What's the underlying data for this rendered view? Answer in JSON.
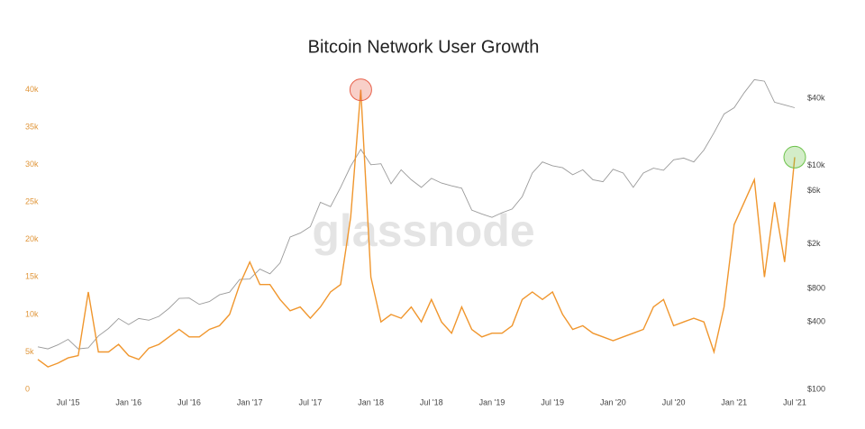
{
  "chart_data": {
    "type": "line",
    "title": "Bitcoin Network User Growth",
    "watermark": "glassnode",
    "x": [
      "2015-04",
      "2015-05",
      "2015-06",
      "2015-07",
      "2015-08",
      "2015-09",
      "2015-10",
      "2015-11",
      "2015-12",
      "2016-01",
      "2016-02",
      "2016-03",
      "2016-04",
      "2016-05",
      "2016-06",
      "2016-07",
      "2016-08",
      "2016-09",
      "2016-10",
      "2016-11",
      "2016-12",
      "2017-01",
      "2017-02",
      "2017-03",
      "2017-04",
      "2017-05",
      "2017-06",
      "2017-07",
      "2017-08",
      "2017-09",
      "2017-10",
      "2017-11",
      "2017-12",
      "2018-01",
      "2018-02",
      "2018-03",
      "2018-04",
      "2018-05",
      "2018-06",
      "2018-07",
      "2018-08",
      "2018-09",
      "2018-10",
      "2018-11",
      "2018-12",
      "2019-01",
      "2019-02",
      "2019-03",
      "2019-04",
      "2019-05",
      "2019-06",
      "2019-07",
      "2019-08",
      "2019-09",
      "2019-10",
      "2019-11",
      "2019-12",
      "2020-01",
      "2020-02",
      "2020-03",
      "2020-04",
      "2020-05",
      "2020-06",
      "2020-07",
      "2020-08",
      "2020-09",
      "2020-10",
      "2020-11",
      "2020-12",
      "2021-01",
      "2021-02",
      "2021-03",
      "2021-04",
      "2021-05",
      "2021-06",
      "2021-07"
    ],
    "series": [
      {
        "color": "#9a9a9a",
        "axis": "y2",
        "values": [
          240,
          230,
          250,
          280,
          230,
          235,
          300,
          350,
          430,
          380,
          430,
          415,
          450,
          530,
          650,
          655,
          575,
          610,
          700,
          740,
          960,
          970,
          1190,
          1080,
          1350,
          2300,
          2500,
          2850,
          4700,
          4300,
          6400,
          9900,
          14000,
          10200,
          10400,
          6900,
          9200,
          7500,
          6400,
          7700,
          7000,
          6600,
          6300,
          4000,
          3700,
          3450,
          3800,
          4100,
          5300,
          8600,
          10800,
          10000,
          9600,
          8300,
          9200,
          7500,
          7200,
          9300,
          8600,
          6400,
          8600,
          9500,
          9100,
          11300,
          11700,
          10800,
          13800,
          19700,
          29000,
          33000,
          45000,
          58800,
          57000,
          37000,
          35000,
          33000
        ]
      },
      {
        "color": "#f0962d",
        "values": [
          4000,
          3000,
          3500,
          4200,
          4500,
          13000,
          5000,
          5000,
          6000,
          4500,
          4000,
          5500,
          6000,
          7000,
          8000,
          7000,
          7000,
          8000,
          8500,
          10000,
          14000,
          17000,
          14000,
          14000,
          12000,
          10500,
          11000,
          9500,
          11000,
          13000,
          14000,
          23000,
          40000,
          15000,
          9000,
          10000,
          9500,
          11000,
          9000,
          12000,
          9000,
          7500,
          11000,
          8000,
          7000,
          7500,
          7500,
          8500,
          12000,
          13000,
          12000,
          13000,
          10000,
          8000,
          8500,
          7500,
          7000,
          6500,
          7000,
          7500,
          8000,
          11000,
          12000,
          8500,
          9000,
          9500,
          9000,
          5000,
          11000,
          22000,
          25000,
          28000,
          15000,
          25000,
          17000,
          31000
        ]
      }
    ],
    "highlights": [
      {
        "x": "2017-12",
        "color": "#e8604a"
      },
      {
        "x": "2021-07",
        "color": "#6cc24a"
      }
    ],
    "xlim": [
      "2015-04",
      "2021-07"
    ],
    "xticks": [
      {
        "value": "2015-07",
        "label": "Jul '15"
      },
      {
        "value": "2016-01",
        "label": "Jan '16"
      },
      {
        "value": "2016-07",
        "label": "Jul '16"
      },
      {
        "value": "2017-01",
        "label": "Jan '17"
      },
      {
        "value": "2017-07",
        "label": "Jul '17"
      },
      {
        "value": "2018-01",
        "label": "Jan '18"
      },
      {
        "value": "2018-07",
        "label": "Jul '18"
      },
      {
        "value": "2019-01",
        "label": "Jan '19"
      },
      {
        "value": "2019-07",
        "label": "Jul '19"
      },
      {
        "value": "2020-01",
        "label": "Jan '20"
      },
      {
        "value": "2020-07",
        "label": "Jul '20"
      },
      {
        "value": "2021-01",
        "label": "Jan '21"
      },
      {
        "value": "2021-07",
        "label": "Jul '21"
      }
    ],
    "ylim": [
      0,
      42000
    ],
    "yticks": [
      0,
      {
        "value": 5000,
        "label": "5k"
      },
      {
        "value": 10000,
        "label": "10k"
      },
      {
        "value": 15000,
        "label": "15k"
      },
      {
        "value": 20000,
        "label": "20k"
      },
      {
        "value": 25000,
        "label": "25k"
      },
      {
        "value": 30000,
        "label": "30k"
      },
      {
        "value": 35000,
        "label": "35k"
      },
      {
        "value": 40000,
        "label": "40k"
      }
    ],
    "y2lim": [
      100,
      65000
    ],
    "y2log": true,
    "y2ticks": [
      {
        "value": 100,
        "label": "$100"
      },
      {
        "value": 400,
        "label": "$400"
      },
      {
        "value": 800,
        "label": "$800"
      },
      {
        "value": 2000,
        "label": "$2k"
      },
      {
        "value": 6000,
        "label": "$6k"
      },
      {
        "value": 10000,
        "label": "$10k"
      },
      {
        "value": 40000,
        "label": "$40k"
      }
    ],
    "grid": false
  }
}
